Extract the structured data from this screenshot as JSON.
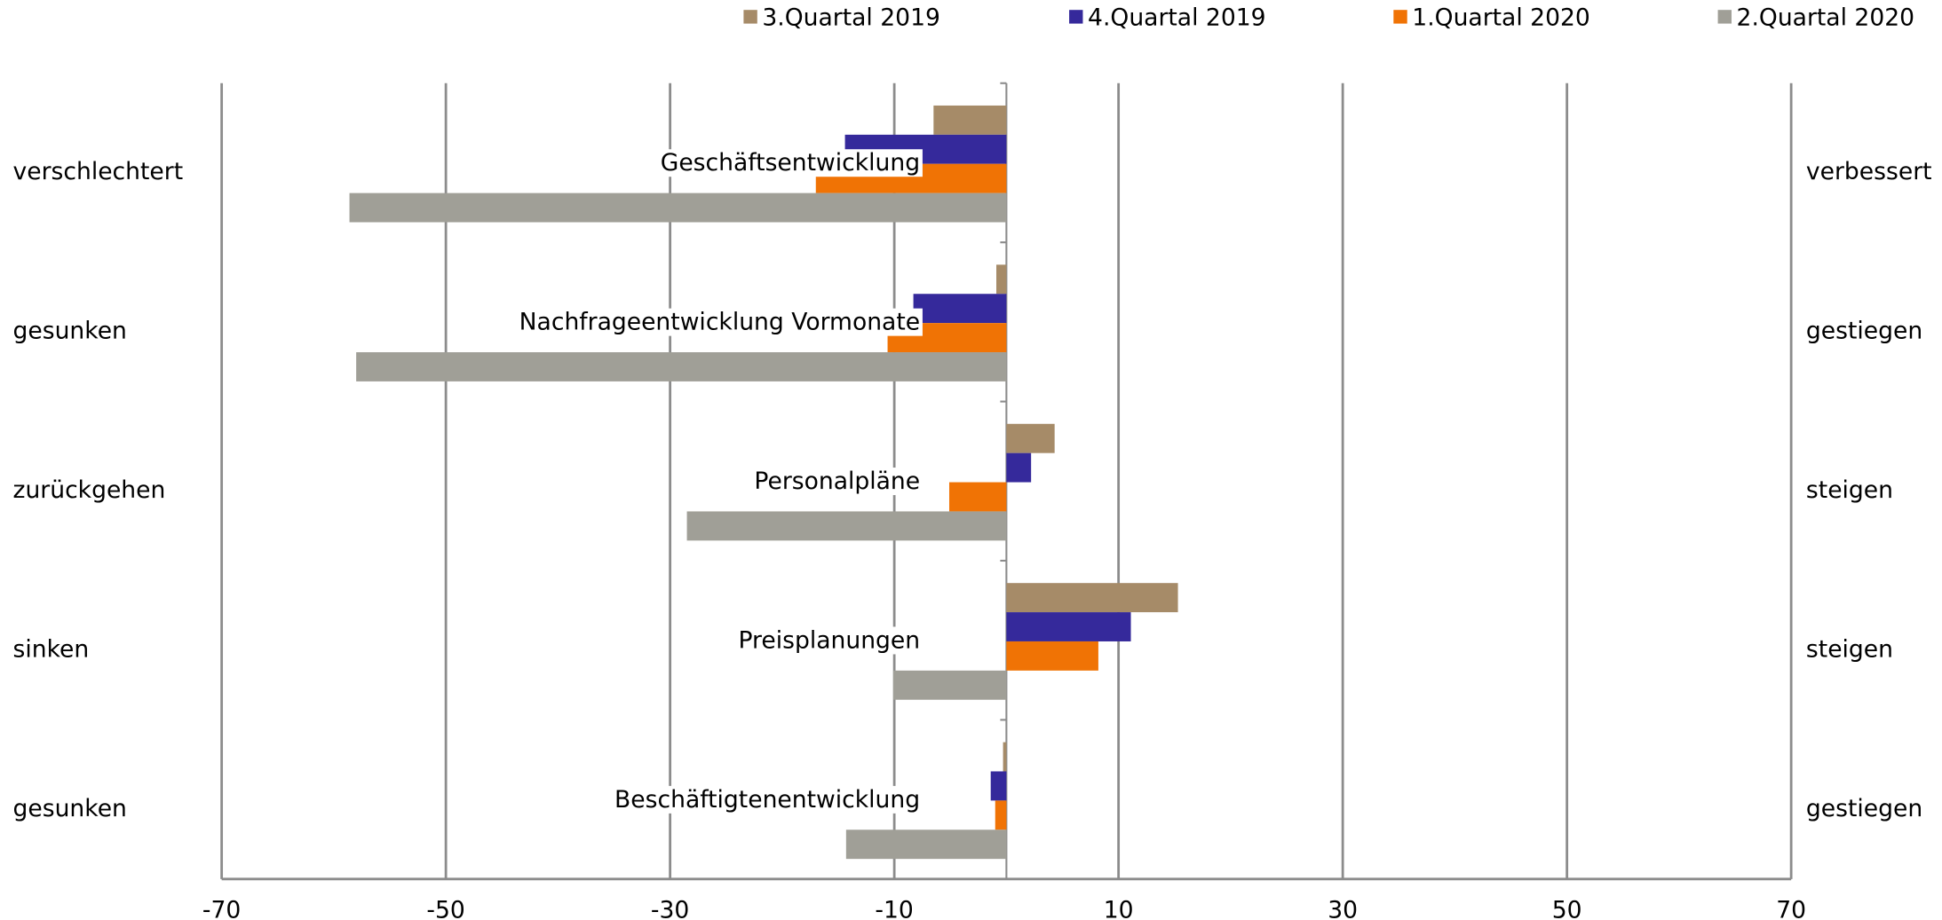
{
  "chart_data": {
    "type": "bar",
    "orientation": "horizontal",
    "legend": "top",
    "categories": [
      "Geschäftsentwicklung",
      "Nachfrageentwicklung Vormonate",
      "Personalpläne",
      "Preisplanungen",
      "Beschäftigtenentwicklung"
    ],
    "left_labels": [
      "verschlechtert",
      "gesunken",
      "zurückgehen",
      "sinken",
      "gesunken"
    ],
    "right_labels": [
      "verbessert",
      "gestiegen",
      "steigen",
      "steigen",
      "gestiegen"
    ],
    "series": [
      {
        "name": "3.Quartal 2019",
        "color": "#a68b68",
        "values": [
          -6.5,
          -0.9,
          4.3,
          15.3,
          -0.3
        ]
      },
      {
        "name": "4.Quartal 2019",
        "color": "#35299b",
        "values": [
          -14.4,
          -8.3,
          2.2,
          11.1,
          -1.4
        ]
      },
      {
        "name": "1.Quartal 2020",
        "color": "#f07305",
        "values": [
          -17,
          -10.6,
          -5.1,
          8.2,
          -1.0
        ]
      },
      {
        "name": "2.Quartal 2020",
        "color": "#a09f97",
        "values": [
          -58.6,
          -58,
          -28.5,
          -10.1,
          -14.3
        ]
      }
    ],
    "xlim": [
      -70,
      70
    ],
    "xticks": [
      -70,
      -50,
      -30,
      -10,
      10,
      30,
      50,
      70
    ],
    "grid": true
  }
}
